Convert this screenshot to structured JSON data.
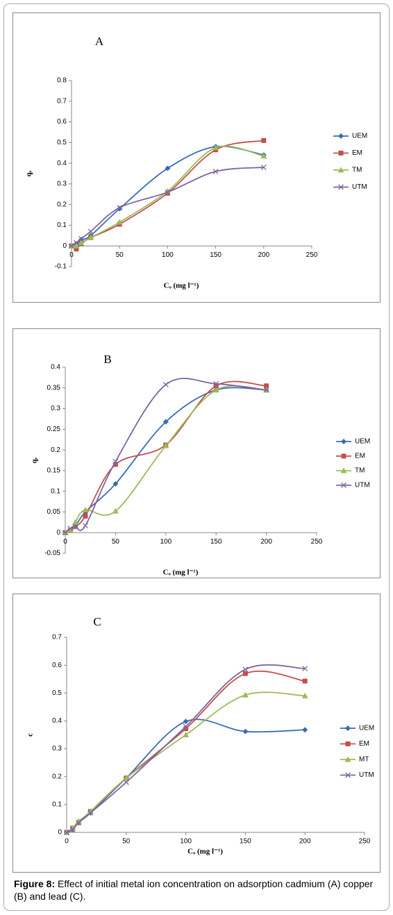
{
  "chart_data": [
    {
      "type": "line",
      "title": "A",
      "x_label": "Cₒ (mg l⁻¹)",
      "y_label": "qₑ",
      "x": [
        0,
        5,
        10,
        20,
        50,
        100,
        150,
        200
      ],
      "xlim": [
        0,
        250
      ],
      "xticks": [
        0,
        50,
        100,
        150,
        200,
        250
      ],
      "ylim": [
        -0.1,
        0.8
      ],
      "yticks": [
        -0.1,
        0,
        0.1,
        0.2,
        0.3,
        0.4,
        0.5,
        0.6,
        0.7,
        0.8
      ],
      "legend": "right",
      "smooth": true,
      "series": [
        {
          "name": "UEM",
          "color": "#3a6bb5",
          "marker": "diamond",
          "values": [
            0,
            0.01,
            0.03,
            0.05,
            0.18,
            0.375,
            0.48,
            0.44
          ]
        },
        {
          "name": "EM",
          "color": "#c0504d",
          "marker": "square",
          "values": [
            0,
            -0.015,
            0.01,
            0.04,
            0.105,
            0.255,
            0.465,
            0.51
          ]
        },
        {
          "name": "TM",
          "color": "#9bbb59",
          "marker": "triangle",
          "values": [
            0,
            0,
            0.015,
            0.04,
            0.115,
            0.265,
            0.475,
            0.435
          ]
        },
        {
          "name": "UTM",
          "color": "#8064a2",
          "marker": "x",
          "values": [
            0,
            0.015,
            0.035,
            0.07,
            0.185,
            0.26,
            0.36,
            0.38
          ]
        }
      ]
    },
    {
      "type": "line",
      "title": "B",
      "x_label": "Cₒ (mg l⁻¹)",
      "y_label": "qₑ",
      "x": [
        0,
        5,
        10,
        20,
        50,
        100,
        150,
        200
      ],
      "xlim": [
        0,
        250
      ],
      "xticks": [
        0,
        50,
        100,
        150,
        200,
        250
      ],
      "ylim": [
        -0.05,
        0.4
      ],
      "yticks": [
        -0.05,
        0,
        0.05,
        0.1,
        0.15,
        0.2,
        0.25,
        0.3,
        0.35,
        0.4
      ],
      "legend": "right",
      "smooth": true,
      "series": [
        {
          "name": "UEM",
          "color": "#3a6bb5",
          "marker": "diamond",
          "values": [
            0,
            0.005,
            0.015,
            0.05,
            0.118,
            0.268,
            0.345,
            0.345
          ]
        },
        {
          "name": "EM",
          "color": "#c0504d",
          "marker": "square",
          "values": [
            0,
            0.005,
            0.015,
            0.04,
            0.165,
            0.212,
            0.355,
            0.355
          ]
        },
        {
          "name": "TM",
          "color": "#9bbb59",
          "marker": "triangle",
          "values": [
            0,
            0.005,
            0.025,
            0.055,
            0.052,
            0.21,
            0.345,
            0.345
          ]
        },
        {
          "name": "UTM",
          "color": "#8064a2",
          "marker": "x",
          "values": [
            0,
            0.01,
            0.015,
            0.017,
            0.172,
            0.358,
            0.36,
            0.345
          ]
        }
      ]
    },
    {
      "type": "line",
      "title": "C",
      "x_label": "Cₒ (mg l⁻¹)",
      "y_label": "c",
      "x": [
        0,
        5,
        10,
        20,
        50,
        100,
        150,
        200
      ],
      "xlim": [
        0,
        250
      ],
      "xticks": [
        0,
        50,
        100,
        150,
        200,
        250
      ],
      "ylim": [
        0,
        0.7
      ],
      "yticks": [
        0,
        0.1,
        0.2,
        0.3,
        0.4,
        0.5,
        0.6,
        0.7
      ],
      "legend": "right",
      "smooth": true,
      "series": [
        {
          "name": "UEM",
          "color": "#3a6bb5",
          "marker": "diamond",
          "values": [
            0,
            0.01,
            0.035,
            0.07,
            0.195,
            0.398,
            0.362,
            0.368
          ]
        },
        {
          "name": "EM",
          "color": "#c0504d",
          "marker": "square",
          "values": [
            0,
            0.015,
            0.035,
            0.075,
            0.195,
            0.372,
            0.57,
            0.543
          ]
        },
        {
          "name": "MT",
          "color": "#9bbb59",
          "marker": "triangle",
          "values": [
            0,
            0.015,
            0.04,
            0.075,
            0.195,
            0.35,
            0.493,
            0.49
          ]
        },
        {
          "name": "UTM",
          "color": "#8064a2",
          "marker": "x",
          "values": [
            0,
            0.01,
            0.035,
            0.07,
            0.18,
            0.38,
            0.585,
            0.588
          ]
        }
      ]
    }
  ],
  "caption": {
    "label": "Figure 8:",
    "text": "Effect of initial metal ion concentration on adsorption cadmium (A) copper (B) and lead (C)."
  }
}
